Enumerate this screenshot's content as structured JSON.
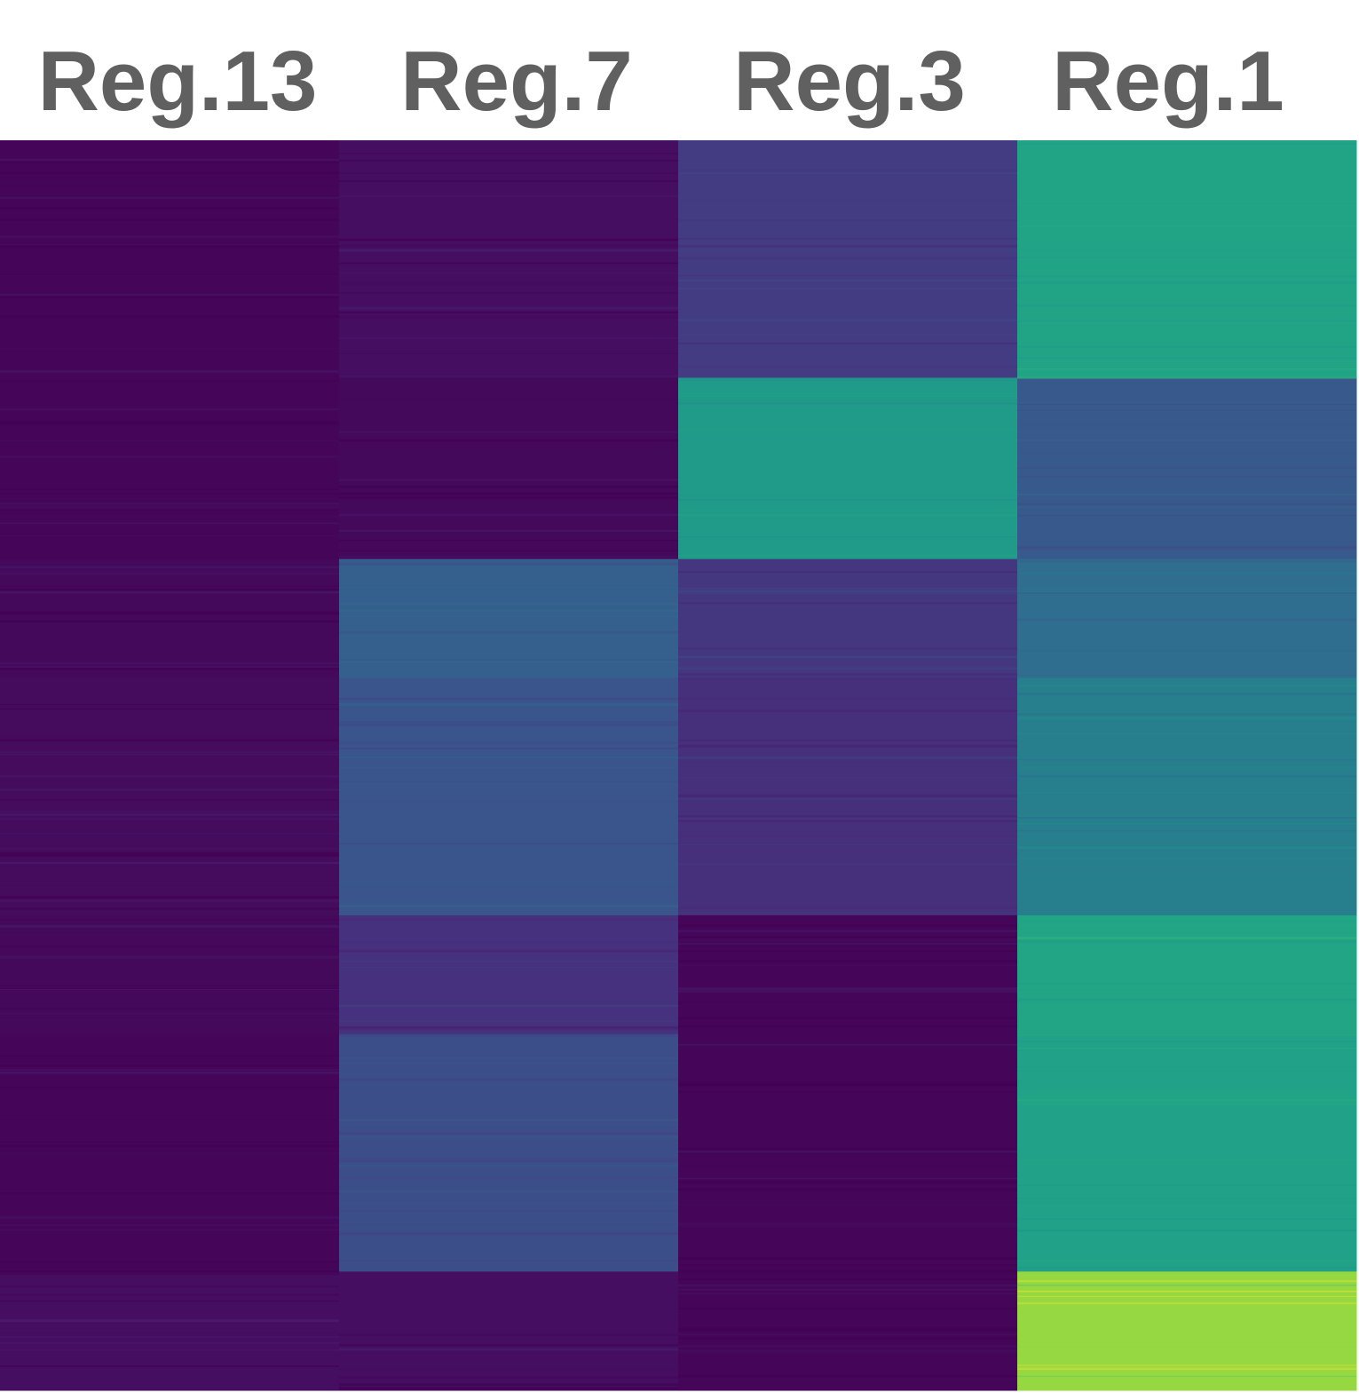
{
  "chart_data": {
    "type": "heatmap",
    "columns": [
      "Reg.13",
      "Reg.7",
      "Reg.3",
      "Reg.1"
    ],
    "value_range": [
      0,
      1
    ],
    "colormap": "viridis",
    "cluster_rows": [
      {
        "weight": 0.19,
        "values": [
          0.02,
          0.05,
          0.22,
          0.72
        ]
      },
      {
        "weight": 0.145,
        "values": [
          0.02,
          0.03,
          0.66,
          0.35
        ]
      },
      {
        "weight": 0.095,
        "values": [
          0.03,
          0.38,
          0.2,
          0.45
        ]
      },
      {
        "weight": 0.19,
        "values": [
          0.04,
          0.33,
          0.17,
          0.53
        ]
      },
      {
        "weight": 0.095,
        "values": [
          0.03,
          0.18,
          0.02,
          0.73
        ]
      },
      {
        "weight": 0.19,
        "values": [
          0.02,
          0.3,
          0.02,
          0.7
        ]
      },
      {
        "weight": 0.095,
        "values": [
          0.05,
          0.05,
          0.02,
          0.9
        ]
      }
    ],
    "grid": false,
    "legend": "none"
  }
}
